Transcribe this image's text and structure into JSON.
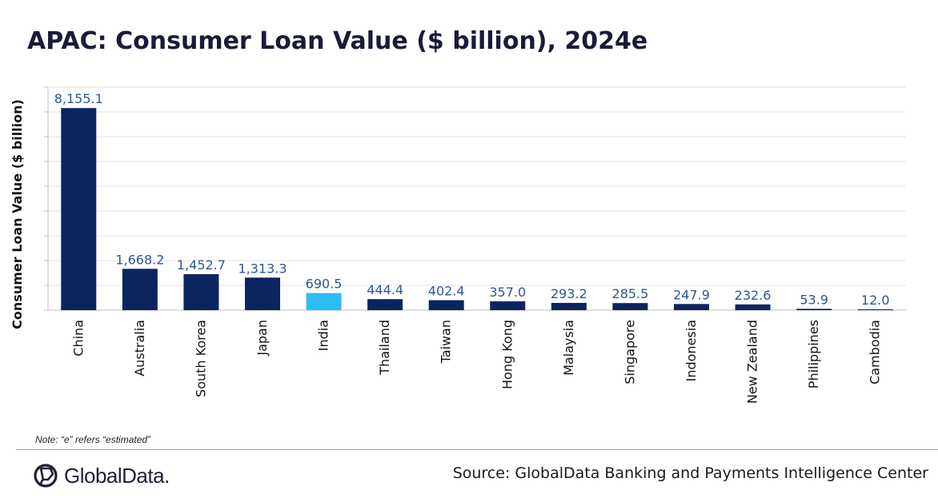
{
  "chart_data": {
    "type": "bar",
    "title": "APAC: Consumer Loan Value ($ billion), 2024e",
    "xlabel": "",
    "ylabel": "Consumer Loan Value ($ billion)",
    "categories": [
      "China",
      "Australia",
      "South Korea",
      "Japan",
      "India",
      "Thailand",
      "Taiwan",
      "Hong Kong",
      "Malaysia",
      "Singapore",
      "Indonesia",
      "New Zealand",
      "Philippines",
      "Cambodia"
    ],
    "values": [
      8155.1,
      1668.2,
      1452.7,
      1313.3,
      690.5,
      444.4,
      402.4,
      357.0,
      293.2,
      285.5,
      247.9,
      232.6,
      53.9,
      12.0
    ],
    "value_labels": [
      "8,155.1",
      "1,668.2",
      "1,452.7",
      "1,313.3",
      "690.5",
      "444.4",
      "402.4",
      "357.0",
      "293.2",
      "285.5",
      "247.9",
      "232.6",
      "53.9",
      "12.0"
    ],
    "ylim": [
      0,
      9000
    ],
    "grid": true,
    "bar_color": "#0b2561",
    "highlight_index": 4,
    "highlight_color": "#2ebcf5",
    "label_color": "#2f5597"
  },
  "note": "Note: “e” refers “estimated”",
  "source": "Source: GlobalData Banking and Payments Intelligence Center",
  "logo": {
    "text": "GlobalData.",
    "icon": "globaldata-logo-icon"
  }
}
